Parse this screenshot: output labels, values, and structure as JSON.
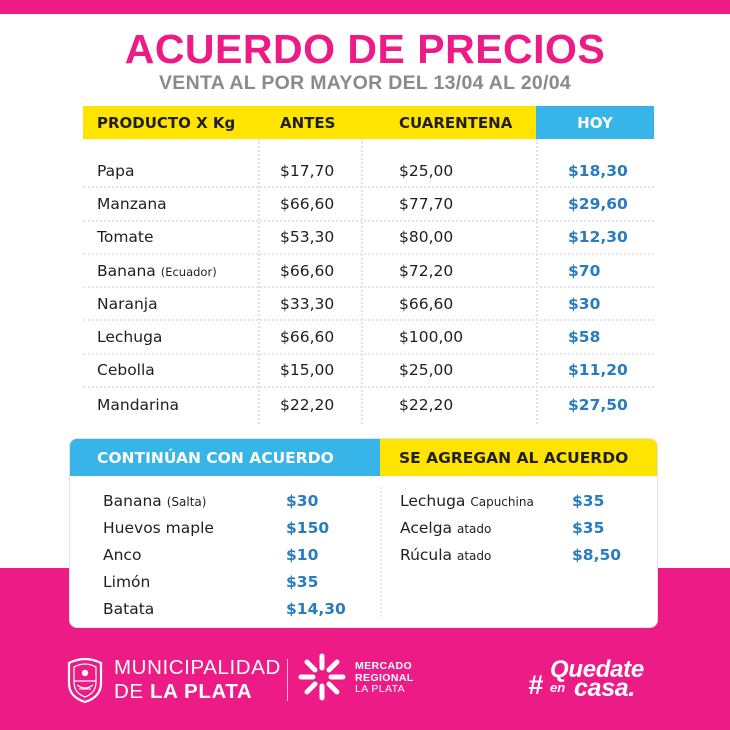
{
  "header": {
    "title": "ACUERDO DE PRECIOS",
    "subtitle": "VENTA AL POR MAYOR DEL 13/04 AL 20/04"
  },
  "main_table": {
    "columns": [
      "PRODUCTO X Kg",
      "ANTES",
      "CUARENTENA",
      "HOY"
    ],
    "rows": [
      {
        "product": "Papa",
        "note": "",
        "antes": "$17,70",
        "cuarentena": "$25,00",
        "hoy": "$18,30"
      },
      {
        "product": "Manzana",
        "note": "",
        "antes": "$66,60",
        "cuarentena": "$77,70",
        "hoy": "$29,60"
      },
      {
        "product": "Tomate",
        "note": "",
        "antes": "$53,30",
        "cuarentena": "$80,00",
        "hoy": "$12,30"
      },
      {
        "product": "Banana",
        "note": "(Ecuador)",
        "antes": "$66,60",
        "cuarentena": "$72,20",
        "hoy": "$70"
      },
      {
        "product": "Naranja",
        "note": "",
        "antes": "$33,30",
        "cuarentena": "$66,60",
        "hoy": "$30"
      },
      {
        "product": "Lechuga",
        "note": "",
        "antes": "$66,60",
        "cuarentena": "$100,00",
        "hoy": "$58"
      },
      {
        "product": "Cebolla",
        "note": "",
        "antes": "$15,00",
        "cuarentena": "$25,00",
        "hoy": "$11,20"
      },
      {
        "product": "Mandarina",
        "note": "",
        "antes": "$22,20",
        "cuarentena": "$22,20",
        "hoy": "$27,50"
      }
    ]
  },
  "continuan": {
    "heading": "CONTINÚAN CON ACUERDO",
    "items": [
      {
        "name": "Banana",
        "note": "(Salta)",
        "price": "$30"
      },
      {
        "name": "Huevos maple",
        "note": "",
        "price": "$150"
      },
      {
        "name": "Anco",
        "note": "",
        "price": "$10"
      },
      {
        "name": "Limón",
        "note": "",
        "price": "$35"
      },
      {
        "name": "Batata",
        "note": "",
        "price": "$14,30"
      }
    ]
  },
  "agregan": {
    "heading": "SE AGREGAN AL ACUERDO",
    "items": [
      {
        "name": "Lechuga",
        "note": "Capuchina",
        "price": "$35"
      },
      {
        "name": "Acelga",
        "note": "atado",
        "price": "$35"
      },
      {
        "name": "Rúcula",
        "note": "atado",
        "price": "$8,50"
      }
    ]
  },
  "footer": {
    "municipality_line1": "MUNICIPALIDAD",
    "municipality_line2_prefix": "DE",
    "municipality_line2_bold": "LA PLATA",
    "mercado_line1": "MERCADO",
    "mercado_line2": "REGIONAL",
    "mercado_line3": "LA PLATA",
    "hashtag_symbol": "#",
    "hashtag_word1": "Quedate",
    "hashtag_word2": "en",
    "hashtag_word3": "casa."
  },
  "colors": {
    "brand_pink": "#ec1b86",
    "accent_yellow": "#ffe400",
    "accent_blue": "#37b4e8",
    "price_blue": "#2a7cc0",
    "subtitle_gray": "#8a8a8a"
  },
  "icons": {
    "municipality_logo": "coat-of-arms-icon",
    "mercado_logo": "mercado-star-icon"
  }
}
